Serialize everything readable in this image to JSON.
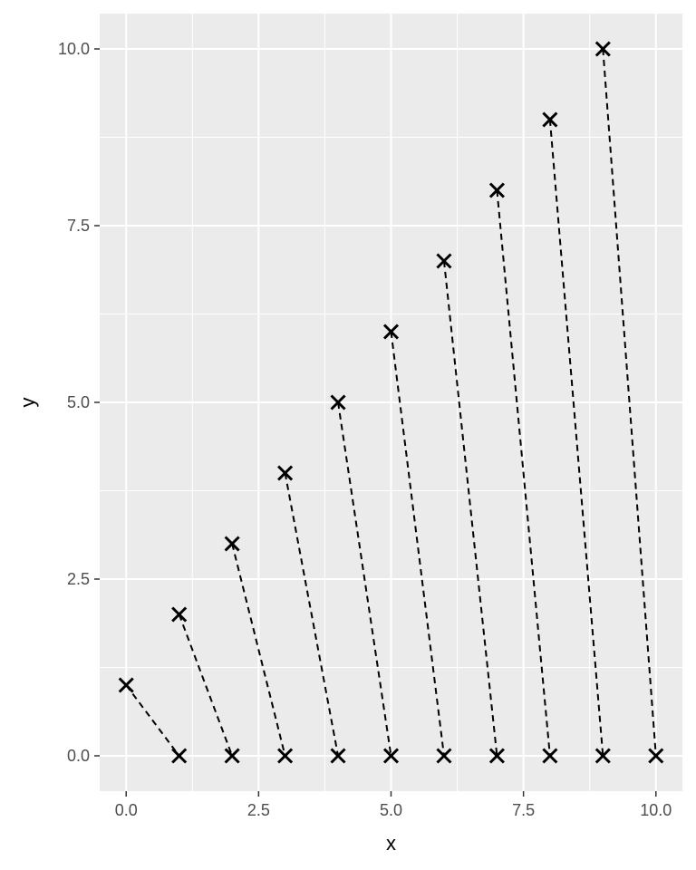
{
  "chart_data": {
    "type": "scatter",
    "title": "",
    "xlabel": "x",
    "ylabel": "y",
    "xlim": [
      -0.5,
      10.5
    ],
    "ylim": [
      -0.5,
      10.5
    ],
    "x_ticks": [
      0.0,
      2.5,
      5.0,
      7.5,
      10.0
    ],
    "y_ticks": [
      0.0,
      2.5,
      5.0,
      7.5,
      10.0
    ],
    "x_tick_labels": [
      "0.0",
      "2.5",
      "5.0",
      "7.5",
      "10.0"
    ],
    "y_tick_labels": [
      "0.0",
      "2.5",
      "5.0",
      "7.5",
      "10.0"
    ],
    "grid": true,
    "panel_background": "#ebebeb",
    "grid_color": "#ffffff",
    "point_marker": "x",
    "point_color": "#000000",
    "segment_style": "dashed",
    "segment_color": "#000000",
    "points_upper": {
      "x": [
        0,
        1,
        2,
        3,
        4,
        5,
        6,
        7,
        8,
        9
      ],
      "y": [
        1,
        2,
        3,
        4,
        5,
        6,
        7,
        8,
        9,
        10
      ]
    },
    "points_lower": {
      "x": [
        1,
        2,
        3,
        4,
        5,
        6,
        7,
        8,
        9,
        10
      ],
      "y": [
        0,
        0,
        0,
        0,
        0,
        0,
        0,
        0,
        0,
        0
      ]
    },
    "segments": [
      {
        "x": 0,
        "y": 1,
        "xend": 1,
        "yend": 0
      },
      {
        "x": 1,
        "y": 2,
        "xend": 2,
        "yend": 0
      },
      {
        "x": 2,
        "y": 3,
        "xend": 3,
        "yend": 0
      },
      {
        "x": 3,
        "y": 4,
        "xend": 4,
        "yend": 0
      },
      {
        "x": 4,
        "y": 5,
        "xend": 5,
        "yend": 0
      },
      {
        "x": 5,
        "y": 6,
        "xend": 6,
        "yend": 0
      },
      {
        "x": 6,
        "y": 7,
        "xend": 7,
        "yend": 0
      },
      {
        "x": 7,
        "y": 8,
        "xend": 8,
        "yend": 0
      },
      {
        "x": 8,
        "y": 9,
        "xend": 9,
        "yend": 0
      },
      {
        "x": 9,
        "y": 10,
        "xend": 10,
        "yend": 0
      }
    ]
  }
}
